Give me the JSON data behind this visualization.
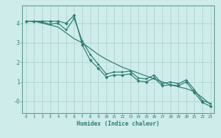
{
  "xlabel": "Humidex (Indice chaleur)",
  "background_color": "#ceecea",
  "grid_color": "#aed4d0",
  "line_color": "#2e7d72",
  "spine_color": "#5a9a90",
  "xlim": [
    -0.5,
    23.5
  ],
  "ylim": [
    -0.6,
    4.9
  ],
  "yticks": [
    0,
    1,
    2,
    3,
    4
  ],
  "ytick_labels": [
    "-0",
    "1",
    "2",
    "3",
    "4"
  ],
  "xticks": [
    0,
    1,
    2,
    3,
    4,
    5,
    6,
    7,
    8,
    9,
    10,
    11,
    12,
    13,
    14,
    15,
    16,
    17,
    18,
    19,
    20,
    21,
    22,
    23
  ],
  "line1_x": [
    0,
    1,
    2,
    3,
    4,
    5,
    6,
    7,
    8,
    9,
    10,
    11,
    12,
    13,
    14,
    15,
    16,
    17,
    18,
    19,
    20,
    21,
    22,
    23
  ],
  "line1_y": [
    4.1,
    4.1,
    4.1,
    4.1,
    4.1,
    4.0,
    4.4,
    2.9,
    2.1,
    1.7,
    1.25,
    1.35,
    1.35,
    1.4,
    1.05,
    1.0,
    1.2,
    0.8,
    0.85,
    0.8,
    1.0,
    0.45,
    -0.05,
    -0.25
  ],
  "line2_x": [
    0,
    1,
    2,
    3,
    4,
    5,
    6,
    7,
    8,
    9,
    10,
    11,
    12,
    13,
    14,
    15,
    16,
    17,
    18,
    19,
    20,
    21,
    22,
    23
  ],
  "line2_y": [
    4.1,
    4.1,
    4.0,
    3.9,
    3.8,
    3.5,
    3.2,
    3.0,
    2.7,
    2.4,
    2.15,
    1.95,
    1.75,
    1.6,
    1.45,
    1.3,
    1.15,
    1.0,
    0.85,
    0.75,
    0.65,
    0.5,
    0.2,
    -0.15
  ],
  "line3_x": [
    0,
    1,
    2,
    3,
    4,
    5,
    6,
    7,
    8,
    9,
    10,
    11,
    12,
    13,
    14,
    15,
    16,
    17,
    18,
    19,
    20,
    21,
    22,
    23
  ],
  "line3_y": [
    4.1,
    4.1,
    4.05,
    3.95,
    4.0,
    3.65,
    4.25,
    3.1,
    2.4,
    1.9,
    1.4,
    1.5,
    1.5,
    1.55,
    1.2,
    1.15,
    1.35,
    0.9,
    1.0,
    0.9,
    1.1,
    0.6,
    0.05,
    -0.1
  ]
}
